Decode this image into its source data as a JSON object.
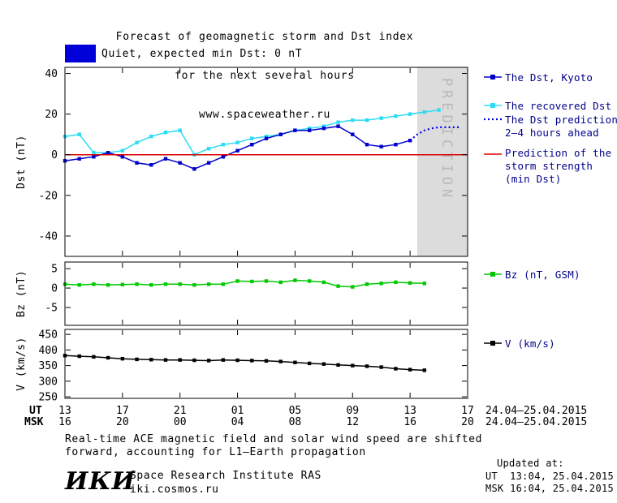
{
  "title": {
    "line1": "Forecast of geomagnetic storm and Dst index",
    "line2": "for the next several hours",
    "line3": "www.spaceweather.ru"
  },
  "quiet_banner": {
    "label": "Quiet, expected min Dst: 0 nT",
    "color": "#0000d8"
  },
  "legend": {
    "dst_kyoto": "The Dst, Kyoto",
    "recovered": "The recovered Dst",
    "prediction_line1": "The Dst prediction",
    "prediction_line2": "2–4 hours ahead",
    "storm_line1": "Prediction of the",
    "storm_line2": "storm strength",
    "storm_line3": "(min Dst)",
    "bz": "Bz (nT, GSM)",
    "v": "V (km/s)"
  },
  "x_axis": {
    "xlim_hours": [
      0,
      28
    ],
    "tick_hours": [
      0,
      4,
      8,
      12,
      16,
      20,
      24,
      28
    ],
    "ut_label": "UT",
    "msk_label": "MSK",
    "ut_ticks": [
      "13",
      "17",
      "21",
      "01",
      "05",
      "09",
      "13",
      "17"
    ],
    "msk_ticks": [
      "16",
      "20",
      "00",
      "04",
      "08",
      "12",
      "16",
      "20"
    ],
    "ut_date_range": "24.04–25.04.2015",
    "msk_date_range": "24.04–25.04.2015"
  },
  "chart_data": [
    {
      "id": "dst",
      "type": "line",
      "ylabel": "Dst (nT)",
      "ylim": [
        -50,
        43
      ],
      "yticks": [
        40,
        20,
        0,
        -20,
        -40
      ],
      "prediction_region": {
        "x_from": 24.5,
        "x_to": 28,
        "label": "PREDICTION",
        "fill": "#dcdcdc",
        "text_color": "#b9b9b9"
      },
      "series": [
        {
          "id": "recovered_dst",
          "name": "The recovered Dst",
          "color": "#2bdcf5",
          "marker": "square",
          "x": [
            0,
            1,
            2,
            3,
            4,
            5,
            6,
            7,
            8,
            9,
            10,
            11,
            12,
            13,
            14,
            15,
            16,
            17,
            18,
            19,
            20,
            21,
            22,
            23,
            24,
            25,
            26
          ],
          "values": [
            9,
            10,
            1,
            1,
            2,
            6,
            9,
            11,
            12,
            0,
            3,
            5,
            6,
            8,
            9,
            10,
            12,
            13,
            14,
            16,
            17,
            17,
            18,
            19,
            20,
            21,
            22
          ]
        },
        {
          "id": "dst_kyoto",
          "name": "The Dst, Kyoto",
          "color": "#0000cc",
          "marker": "square",
          "x": [
            0,
            1,
            2,
            3,
            4,
            5,
            6,
            7,
            8,
            9,
            10,
            11,
            12,
            13,
            14,
            15,
            16,
            17,
            18,
            19,
            20,
            21,
            22,
            23,
            24
          ],
          "values": [
            -3,
            -2,
            -1,
            1,
            -1,
            -4,
            -5,
            -2,
            -4,
            -7,
            -4,
            -1,
            2,
            5,
            8,
            10,
            12,
            12,
            13,
            14,
            10,
            5,
            4,
            5,
            7
          ]
        },
        {
          "id": "dst_prediction",
          "name": "The Dst prediction 2–4 hours ahead",
          "color": "#0000ee",
          "style": "dotted",
          "x": [
            24,
            24.5,
            25,
            25.5,
            26,
            26.5,
            27,
            27.4
          ],
          "values": [
            7,
            10,
            12,
            13,
            13.5,
            13.5,
            13.5,
            13.5
          ]
        },
        {
          "id": "storm_strength",
          "name": "Prediction of the storm strength (min Dst)",
          "color": "#dd0000",
          "render": "hline",
          "value": 0
        }
      ]
    },
    {
      "id": "bz",
      "type": "line",
      "ylabel": "Bz (nT)",
      "ylim": [
        -9.6,
        6.7
      ],
      "yticks": [
        5,
        0,
        -5
      ],
      "series": [
        {
          "id": "bz",
          "name": "Bz (nT, GSM)",
          "color": "#00c800",
          "marker": "square",
          "x": [
            0,
            1,
            2,
            3,
            4,
            5,
            6,
            7,
            8,
            9,
            10,
            11,
            12,
            13,
            14,
            15,
            16,
            17,
            18,
            19,
            20,
            21,
            22,
            23,
            24,
            25
          ],
          "values": [
            1.0,
            0.8,
            1.0,
            0.8,
            0.9,
            1.0,
            0.8,
            1.0,
            1.0,
            0.8,
            1.0,
            1.0,
            1.8,
            1.7,
            1.8,
            1.5,
            2.0,
            1.8,
            1.5,
            0.5,
            0.3,
            1.0,
            1.2,
            1.5,
            1.3,
            1.2
          ]
        }
      ]
    },
    {
      "id": "v",
      "type": "line",
      "ylabel": "V (km/s)",
      "ylim": [
        245,
        466
      ],
      "yticks": [
        450,
        400,
        350,
        300,
        250
      ],
      "series": [
        {
          "id": "v",
          "name": "V (km/s)",
          "color": "#000000",
          "marker": "square",
          "x": [
            0,
            1,
            2,
            3,
            4,
            5,
            6,
            7,
            8,
            9,
            10,
            11,
            12,
            13,
            14,
            15,
            16,
            17,
            18,
            19,
            20,
            21,
            22,
            23,
            24,
            25
          ],
          "values": [
            382,
            380,
            378,
            375,
            372,
            370,
            369,
            368,
            368,
            367,
            366,
            368,
            367,
            366,
            365,
            363,
            360,
            357,
            355,
            352,
            350,
            348,
            345,
            340,
            337,
            335
          ]
        }
      ]
    }
  ],
  "footer": {
    "note_line1": "Real-time ACE magnetic field and solar wind speed are shifted",
    "note_line2": "forward, accounting for L1–Earth propagation",
    "logo": "ИКИ",
    "institute": "Space Research Institute RAS",
    "site": "iki.cosmos.ru",
    "updated_label": "Updated at:",
    "updated_ut": "UT  13:04, 25.04.2015",
    "updated_msk": "MSK 16:04, 25.04.2015"
  }
}
